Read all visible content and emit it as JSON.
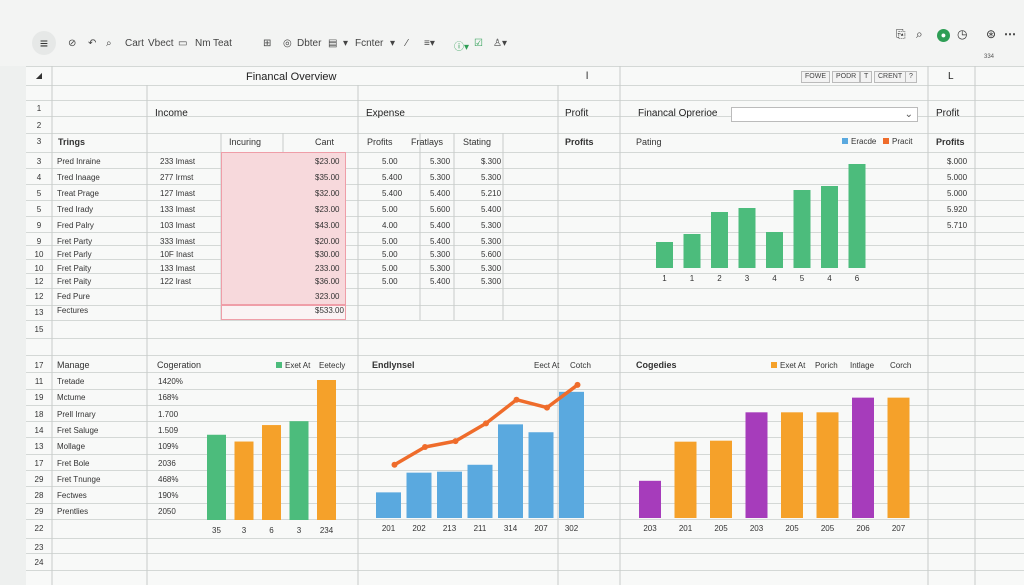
{
  "toolbar": {
    "items": [
      "Cart",
      "Vbect",
      "Nm",
      "Teat",
      "Dbter",
      "Fcnter"
    ],
    "right_small": "334"
  },
  "sheet": {
    "title": "Financal Overview",
    "col_marker": "l",
    "mini_buttons": [
      "FOWE",
      "PODR",
      "T",
      "CRENT",
      "?"
    ],
    "right_col_marker": "L",
    "row_numbers": [
      "1",
      "2",
      "3",
      "3",
      "4",
      "5",
      "5",
      "9",
      "9",
      "10",
      "10",
      "12",
      "12",
      "13",
      "15",
      "17",
      "11",
      "19",
      "18",
      "14",
      "13",
      "17",
      "29",
      "28",
      "29",
      "22",
      "23",
      "24"
    ],
    "sections": {
      "income": "Income",
      "expense": "Expense",
      "profit": "Profit",
      "overview": "Financal Oprerioe",
      "profit_right": "Profit"
    },
    "subheaders": [
      "Trings",
      "Incuring",
      "Cant",
      "Profits",
      "Fratlays",
      "Stating",
      "Profits",
      "Pating",
      "Profits"
    ],
    "legend_top": [
      "Eracde",
      "Pracit"
    ],
    "rows": [
      {
        "name": "Pred Inraine",
        "count": "233 Imast",
        "cant": "$23.00",
        "profit": "5.00",
        "a": "5.300",
        "b": "$.300"
      },
      {
        "name": "Tred Inaage",
        "count": "277 Irmst",
        "cant": "$35.00",
        "profit": "5.400",
        "a": "5.300",
        "b": "5.300"
      },
      {
        "name": "Treat Prage",
        "count": "127 Imast",
        "cant": "$32.00",
        "profit": "5.400",
        "a": "5.400",
        "b": "5.210"
      },
      {
        "name": "Tred Irady",
        "count": "133 Imast",
        "cant": "$23.00",
        "profit": "5.00",
        "a": "5.600",
        "b": "5.400"
      },
      {
        "name": "Fred Palry",
        "count": "103 Imast",
        "cant": "$43.00",
        "profit": "4.00",
        "a": "5.400",
        "b": "5.300"
      },
      {
        "name": "Fret Party",
        "count": "333 Imast",
        "cant": "$20.00",
        "profit": "5.00",
        "a": "5.400",
        "b": "5.300"
      },
      {
        "name": "Fret Parly",
        "count": "10F Inast",
        "cant": "$30.00",
        "profit": "5.00",
        "a": "5.300",
        "b": "5.600"
      },
      {
        "name": "Fret Paity",
        "count": "133 Imast",
        "cant": "233.00",
        "profit": "5.00",
        "a": "5.300",
        "b": "5.300"
      },
      {
        "name": "Fret Paity",
        "count": "122 Irast",
        "cant": "$36.00",
        "profit": "5.00",
        "a": "5.400",
        "b": "5.300"
      },
      {
        "name": "Fed Pure",
        "count": "",
        "cant": "323.00",
        "profit": "",
        "a": "",
        "b": ""
      },
      {
        "name": "Fectures",
        "count": "",
        "cant": "$533.00",
        "profit": "",
        "a": "",
        "b": ""
      }
    ],
    "right_profits": [
      "$.000",
      "5.000",
      "5.000",
      "5.920",
      "5.710"
    ],
    "bottom": {
      "manage_header": "Manage",
      "manage_rows": [
        {
          "name": "Tretade",
          "value": "1420%"
        },
        {
          "name": "Mctume",
          "value": "168%"
        },
        {
          "name": "Prell Irnary",
          "value": "1.700"
        },
        {
          "name": "Fret Saluge",
          "value": "1.509"
        },
        {
          "name": "Mollage",
          "value": "109%"
        },
        {
          "name": "Fret Bole",
          "value": "2036"
        },
        {
          "name": "Fret Tnunge",
          "value": "468%"
        },
        {
          "name": "Fectwes",
          "value": "190%"
        },
        {
          "name": "Prentlies",
          "value": "2050"
        }
      ],
      "chart1_title": "Cogeration",
      "chart1_legend": [
        "Exet At",
        "Eetecly"
      ],
      "chart2_title": "Endlynsel",
      "chart2_legend": [
        "Eect At",
        "Cotch"
      ],
      "chart3_title": "Cogedies",
      "chart3_legend": [
        "Exet At",
        "Porich",
        "Intlage",
        "Corch"
      ]
    }
  },
  "colors": {
    "green": "#4cbc7c",
    "orange": "#f5a12a",
    "blue": "#5aa9df",
    "purple": "#a63cbb",
    "line_orange": "#ef6c2b"
  },
  "chart_data": [
    {
      "type": "bar",
      "categories": [
        "1",
        "1",
        "2",
        "3",
        "4",
        "5",
        "4",
        "6"
      ],
      "values": [
        26,
        34,
        56,
        60,
        36,
        78,
        82,
        104
      ],
      "ylim": [
        0,
        110
      ],
      "legend": [
        "Eracde",
        "Pracit"
      ]
    },
    {
      "type": "bar",
      "title": "Cogeration",
      "categories": [
        "35",
        "3",
        "6",
        "3",
        "234"
      ],
      "series": [
        {
          "name": "Exet At",
          "values": [
            88,
            81,
            98,
            102,
            149
          ]
        }
      ],
      "bar_colors": [
        "#4cbc7c",
        "#f5a12a",
        "#f5a12a",
        "#4cbc7c",
        "#f5a12a"
      ],
      "ylim": [
        0,
        160
      ]
    },
    {
      "type": "bar",
      "title": "Endlynsel",
      "categories": [
        "201",
        "202",
        "213",
        "211",
        "314",
        "207",
        "302"
      ],
      "values": [
        26,
        46,
        47,
        54,
        95,
        87,
        128
      ],
      "line_values": [
        54,
        72,
        78,
        96,
        120,
        112,
        135
      ],
      "ylim": [
        0,
        140
      ],
      "legend": [
        "Eect At",
        "Cotch"
      ]
    },
    {
      "type": "bar",
      "title": "Cogedies",
      "categories": [
        "203",
        "201",
        "205",
        "203",
        "205",
        "205",
        "206",
        "207"
      ],
      "values": [
        38,
        78,
        79,
        108,
        108,
        108,
        123,
        123
      ],
      "bar_colors": [
        "#a63cbb",
        "#f5a12a",
        "#f5a12a",
        "#a63cbb",
        "#f5a12a",
        "#f5a12a",
        "#a63cbb",
        "#f5a12a"
      ],
      "ylim": [
        0,
        140
      ],
      "legend": [
        "Exet At",
        "Porich",
        "Intlage",
        "Corch"
      ]
    }
  ]
}
